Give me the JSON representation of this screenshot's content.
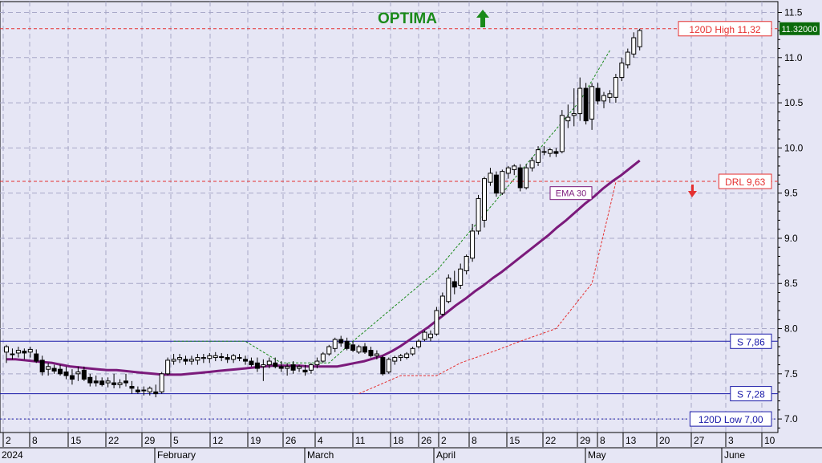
{
  "chart_data": {
    "type": "candlestick",
    "title": "OPTIMA",
    "signal": "up",
    "ylim": [
      6.85,
      11.62
    ],
    "y_ticks": [
      "7.0",
      "7.5",
      "8.0",
      "8.5",
      "9.0",
      "9.5",
      "10.0",
      "10.5",
      "11.0",
      "11.5"
    ],
    "last_price_label": "11.32000",
    "x_day_ticks": [
      "2",
      "8",
      "15",
      "22",
      "29",
      "5",
      "12",
      "19",
      "26",
      "4",
      "11",
      "18",
      "26",
      "2",
      "8",
      "15",
      "22",
      "29",
      "8",
      "13",
      "20",
      "27",
      "3",
      "10"
    ],
    "x_month_labels": [
      "2024",
      "February",
      "March",
      "April",
      "May",
      "June"
    ],
    "levels": [
      {
        "label": "120D High 11,32",
        "value": 11.32,
        "style": "dashed",
        "color": "#e53030"
      },
      {
        "label": "DRL 9,63",
        "value": 9.63,
        "style": "dashed",
        "color": "#e53030"
      },
      {
        "label": "S 7,86",
        "value": 7.86,
        "style": "solid",
        "color": "#1a1aa8"
      },
      {
        "label": "S 7,28",
        "value": 7.28,
        "style": "solid",
        "color": "#1a1aa8"
      },
      {
        "label": "120D Low 7,00",
        "value": 7.0,
        "style": "dotted",
        "color": "#1a1aa8"
      }
    ],
    "ema_label": "EMA 30",
    "colors": {
      "ema": "#7b1a7b",
      "support": "#1a1aa8",
      "resistance": "#e53030",
      "trail_up": "#1a8a1a",
      "trail_down": "#e53030",
      "title": "#1a8a1a",
      "bg": "#e6e6f5"
    },
    "candles": [
      {
        "o": 7.74,
        "h": 7.82,
        "l": 7.62,
        "c": 7.8
      },
      {
        "o": 7.72,
        "h": 7.78,
        "l": 7.66,
        "c": 7.72
      },
      {
        "o": 7.73,
        "h": 7.8,
        "l": 7.68,
        "c": 7.76
      },
      {
        "o": 7.75,
        "h": 7.78,
        "l": 7.66,
        "c": 7.73
      },
      {
        "o": 7.74,
        "h": 7.8,
        "l": 7.68,
        "c": 7.77
      },
      {
        "o": 7.72,
        "h": 7.77,
        "l": 7.62,
        "c": 7.64
      },
      {
        "o": 7.65,
        "h": 7.7,
        "l": 7.48,
        "c": 7.52
      },
      {
        "o": 7.55,
        "h": 7.62,
        "l": 7.48,
        "c": 7.58
      },
      {
        "o": 7.56,
        "h": 7.6,
        "l": 7.5,
        "c": 7.53
      },
      {
        "o": 7.55,
        "h": 7.6,
        "l": 7.48,
        "c": 7.5
      },
      {
        "o": 7.52,
        "h": 7.58,
        "l": 7.44,
        "c": 7.48
      },
      {
        "o": 7.48,
        "h": 7.55,
        "l": 7.38,
        "c": 7.44
      },
      {
        "o": 7.5,
        "h": 7.58,
        "l": 7.42,
        "c": 7.52
      },
      {
        "o": 7.54,
        "h": 7.58,
        "l": 7.42,
        "c": 7.44
      },
      {
        "o": 7.46,
        "h": 7.5,
        "l": 7.36,
        "c": 7.4
      },
      {
        "o": 7.42,
        "h": 7.48,
        "l": 7.36,
        "c": 7.4
      },
      {
        "o": 7.42,
        "h": 7.46,
        "l": 7.36,
        "c": 7.38
      },
      {
        "o": 7.4,
        "h": 7.46,
        "l": 7.35,
        "c": 7.42
      },
      {
        "o": 7.4,
        "h": 7.5,
        "l": 7.34,
        "c": 7.38
      },
      {
        "o": 7.38,
        "h": 7.44,
        "l": 7.34,
        "c": 7.4
      },
      {
        "o": 7.42,
        "h": 7.5,
        "l": 7.36,
        "c": 7.4
      },
      {
        "o": 7.36,
        "h": 7.42,
        "l": 7.28,
        "c": 7.34
      },
      {
        "o": 7.32,
        "h": 7.36,
        "l": 7.28,
        "c": 7.3
      },
      {
        "o": 7.32,
        "h": 7.36,
        "l": 7.26,
        "c": 7.32
      },
      {
        "o": 7.3,
        "h": 7.36,
        "l": 7.26,
        "c": 7.34
      },
      {
        "o": 7.3,
        "h": 7.38,
        "l": 7.24,
        "c": 7.28
      },
      {
        "o": 7.3,
        "h": 7.52,
        "l": 7.28,
        "c": 7.5
      },
      {
        "o": 7.5,
        "h": 7.68,
        "l": 7.48,
        "c": 7.65
      },
      {
        "o": 7.64,
        "h": 7.72,
        "l": 7.6,
        "c": 7.66
      },
      {
        "o": 7.66,
        "h": 7.72,
        "l": 7.62,
        "c": 7.68
      },
      {
        "o": 7.66,
        "h": 7.7,
        "l": 7.6,
        "c": 7.64
      },
      {
        "o": 7.64,
        "h": 7.7,
        "l": 7.6,
        "c": 7.66
      },
      {
        "o": 7.65,
        "h": 7.72,
        "l": 7.6,
        "c": 7.68
      },
      {
        "o": 7.67,
        "h": 7.72,
        "l": 7.62,
        "c": 7.68
      },
      {
        "o": 7.67,
        "h": 7.73,
        "l": 7.62,
        "c": 7.7
      },
      {
        "o": 7.68,
        "h": 7.74,
        "l": 7.64,
        "c": 7.7
      },
      {
        "o": 7.69,
        "h": 7.73,
        "l": 7.64,
        "c": 7.68
      },
      {
        "o": 7.68,
        "h": 7.72,
        "l": 7.62,
        "c": 7.66
      },
      {
        "o": 7.66,
        "h": 7.72,
        "l": 7.62,
        "c": 7.7
      },
      {
        "o": 7.68,
        "h": 7.72,
        "l": 7.64,
        "c": 7.68
      },
      {
        "o": 7.66,
        "h": 7.7,
        "l": 7.6,
        "c": 7.64
      },
      {
        "o": 7.64,
        "h": 7.68,
        "l": 7.58,
        "c": 7.6
      },
      {
        "o": 7.62,
        "h": 7.68,
        "l": 7.52,
        "c": 7.56
      },
      {
        "o": 7.58,
        "h": 7.66,
        "l": 7.42,
        "c": 7.6
      },
      {
        "o": 7.6,
        "h": 7.68,
        "l": 7.56,
        "c": 7.64
      },
      {
        "o": 7.62,
        "h": 7.68,
        "l": 7.56,
        "c": 7.58
      },
      {
        "o": 7.58,
        "h": 7.64,
        "l": 7.52,
        "c": 7.56
      },
      {
        "o": 7.56,
        "h": 7.62,
        "l": 7.48,
        "c": 7.58
      },
      {
        "o": 7.6,
        "h": 7.64,
        "l": 7.5,
        "c": 7.54
      },
      {
        "o": 7.56,
        "h": 7.6,
        "l": 7.52,
        "c": 7.58
      },
      {
        "o": 7.54,
        "h": 7.6,
        "l": 7.48,
        "c": 7.52
      },
      {
        "o": 7.54,
        "h": 7.62,
        "l": 7.5,
        "c": 7.6
      },
      {
        "o": 7.6,
        "h": 7.68,
        "l": 7.56,
        "c": 7.64
      },
      {
        "o": 7.64,
        "h": 7.74,
        "l": 7.62,
        "c": 7.72
      },
      {
        "o": 7.72,
        "h": 7.82,
        "l": 7.7,
        "c": 7.8
      },
      {
        "o": 7.78,
        "h": 7.9,
        "l": 7.74,
        "c": 7.88
      },
      {
        "o": 7.88,
        "h": 7.92,
        "l": 7.8,
        "c": 7.84
      },
      {
        "o": 7.86,
        "h": 7.9,
        "l": 7.76,
        "c": 7.78
      },
      {
        "o": 7.82,
        "h": 7.86,
        "l": 7.74,
        "c": 7.76
      },
      {
        "o": 7.74,
        "h": 7.82,
        "l": 7.72,
        "c": 7.8
      },
      {
        "o": 7.8,
        "h": 7.84,
        "l": 7.72,
        "c": 7.74
      },
      {
        "o": 7.76,
        "h": 7.8,
        "l": 7.68,
        "c": 7.7
      },
      {
        "o": 7.7,
        "h": 7.76,
        "l": 7.66,
        "c": 7.72
      },
      {
        "o": 7.68,
        "h": 7.7,
        "l": 7.48,
        "c": 7.5
      },
      {
        "o": 7.52,
        "h": 7.68,
        "l": 7.5,
        "c": 7.66
      },
      {
        "o": 7.64,
        "h": 7.7,
        "l": 7.6,
        "c": 7.68
      },
      {
        "o": 7.68,
        "h": 7.72,
        "l": 7.64,
        "c": 7.7
      },
      {
        "o": 7.68,
        "h": 7.74,
        "l": 7.66,
        "c": 7.72
      },
      {
        "o": 7.72,
        "h": 7.8,
        "l": 7.7,
        "c": 7.78
      },
      {
        "o": 7.8,
        "h": 7.88,
        "l": 7.78,
        "c": 7.86
      },
      {
        "o": 7.88,
        "h": 7.98,
        "l": 7.86,
        "c": 7.96
      },
      {
        "o": 7.9,
        "h": 7.98,
        "l": 7.86,
        "c": 7.94
      },
      {
        "o": 7.94,
        "h": 8.24,
        "l": 7.92,
        "c": 8.2
      },
      {
        "o": 8.16,
        "h": 8.4,
        "l": 8.14,
        "c": 8.36
      },
      {
        "o": 8.3,
        "h": 8.6,
        "l": 8.28,
        "c": 8.56
      },
      {
        "o": 8.52,
        "h": 8.64,
        "l": 8.38,
        "c": 8.46
      },
      {
        "o": 8.48,
        "h": 8.72,
        "l": 8.44,
        "c": 8.66
      },
      {
        "o": 8.64,
        "h": 8.82,
        "l": 8.6,
        "c": 8.8
      },
      {
        "o": 8.78,
        "h": 9.16,
        "l": 8.74,
        "c": 9.08
      },
      {
        "o": 9.08,
        "h": 9.48,
        "l": 9.04,
        "c": 9.44
      },
      {
        "o": 9.2,
        "h": 9.68,
        "l": 9.12,
        "c": 9.66
      },
      {
        "o": 9.62,
        "h": 9.78,
        "l": 9.58,
        "c": 9.72
      },
      {
        "o": 9.7,
        "h": 9.74,
        "l": 9.46,
        "c": 9.5
      },
      {
        "o": 9.5,
        "h": 9.76,
        "l": 9.48,
        "c": 9.74
      },
      {
        "o": 9.72,
        "h": 9.8,
        "l": 9.66,
        "c": 9.78
      },
      {
        "o": 9.76,
        "h": 9.82,
        "l": 9.7,
        "c": 9.8
      },
      {
        "o": 9.78,
        "h": 9.82,
        "l": 9.52,
        "c": 9.56
      },
      {
        "o": 9.56,
        "h": 9.82,
        "l": 9.54,
        "c": 9.78
      },
      {
        "o": 9.78,
        "h": 9.9,
        "l": 9.74,
        "c": 9.86
      },
      {
        "o": 9.84,
        "h": 10.02,
        "l": 9.8,
        "c": 9.98
      },
      {
        "o": 9.96,
        "h": 10.02,
        "l": 9.92,
        "c": 9.96
      },
      {
        "o": 9.94,
        "h": 10.0,
        "l": 9.9,
        "c": 9.98
      },
      {
        "o": 9.96,
        "h": 10.0,
        "l": 9.9,
        "c": 9.94
      },
      {
        "o": 9.96,
        "h": 10.42,
        "l": 9.94,
        "c": 10.36
      },
      {
        "o": 10.3,
        "h": 10.48,
        "l": 10.22,
        "c": 10.34
      },
      {
        "o": 10.36,
        "h": 10.66,
        "l": 10.24,
        "c": 10.38
      },
      {
        "o": 10.38,
        "h": 10.78,
        "l": 10.3,
        "c": 10.66
      },
      {
        "o": 10.66,
        "h": 10.72,
        "l": 10.26,
        "c": 10.3
      },
      {
        "o": 10.32,
        "h": 10.72,
        "l": 10.2,
        "c": 10.68
      },
      {
        "o": 10.66,
        "h": 10.72,
        "l": 10.48,
        "c": 10.52
      },
      {
        "o": 10.52,
        "h": 10.62,
        "l": 10.44,
        "c": 10.58
      },
      {
        "o": 10.56,
        "h": 10.64,
        "l": 10.5,
        "c": 10.6
      },
      {
        "o": 10.56,
        "h": 10.82,
        "l": 10.5,
        "c": 10.78
      },
      {
        "o": 10.78,
        "h": 11.0,
        "l": 10.74,
        "c": 10.94
      },
      {
        "o": 10.92,
        "h": 11.1,
        "l": 10.88,
        "c": 11.06
      },
      {
        "o": 11.04,
        "h": 11.28,
        "l": 11.0,
        "c": 11.22
      },
      {
        "o": 11.12,
        "h": 11.32,
        "l": 11.08,
        "c": 11.3
      }
    ],
    "ema": [
      7.66,
      7.66,
      7.65,
      7.64,
      7.63,
      7.62,
      7.6,
      7.58,
      7.57,
      7.56,
      7.55,
      7.54,
      7.54,
      7.53,
      7.52,
      7.51,
      7.5,
      7.49,
      7.49,
      7.49,
      7.5,
      7.51,
      7.52,
      7.53,
      7.54,
      7.55,
      7.56,
      7.57,
      7.58,
      7.59,
      7.59,
      7.59,
      7.59,
      7.58,
      7.58,
      7.58,
      7.58,
      7.6,
      7.62,
      7.64,
      7.67,
      7.7,
      7.75,
      7.81,
      7.88,
      7.95,
      8.02,
      8.1,
      8.18,
      8.26,
      8.33,
      8.41,
      8.48,
      8.56,
      8.63,
      8.71,
      8.79,
      8.87,
      8.95,
      9.03,
      9.12,
      9.2,
      9.29,
      9.38,
      9.46,
      9.55,
      9.63,
      9.7,
      9.78,
      9.86
    ],
    "ema_start": 0,
    "trail_up": [
      [
        28,
        7.86
      ],
      [
        40,
        7.86
      ],
      [
        46,
        7.62
      ],
      [
        54,
        7.62
      ],
      [
        58,
        7.86
      ],
      [
        72,
        8.64
      ],
      [
        84,
        9.58
      ],
      [
        96,
        10.52
      ],
      [
        101,
        11.08
      ]
    ],
    "trail_down": [
      [
        59,
        7.28
      ],
      [
        66,
        7.48
      ],
      [
        72,
        7.48
      ],
      [
        76,
        7.62
      ],
      [
        82,
        7.76
      ],
      [
        86,
        7.86
      ],
      [
        92,
        8.0
      ],
      [
        98,
        8.5
      ],
      [
        102,
        9.62
      ]
    ]
  }
}
